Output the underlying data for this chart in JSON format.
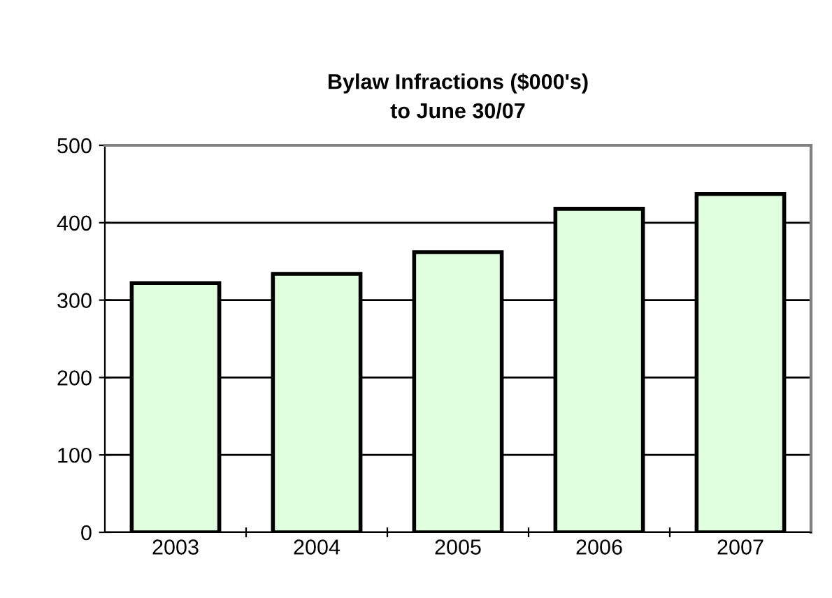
{
  "chart_data": {
    "type": "bar",
    "title": "Bylaw Infractions ($000's)\nto June 30/07",
    "categories": [
      "2003",
      "2004",
      "2005",
      "2006",
      "2007"
    ],
    "values": [
      322,
      334,
      362,
      418,
      437
    ],
    "color": "#dfffdf",
    "ylim": [
      0,
      500
    ],
    "yticks": [
      0,
      100,
      200,
      300,
      400,
      500
    ],
    "grid": "y",
    "legend": false
  }
}
